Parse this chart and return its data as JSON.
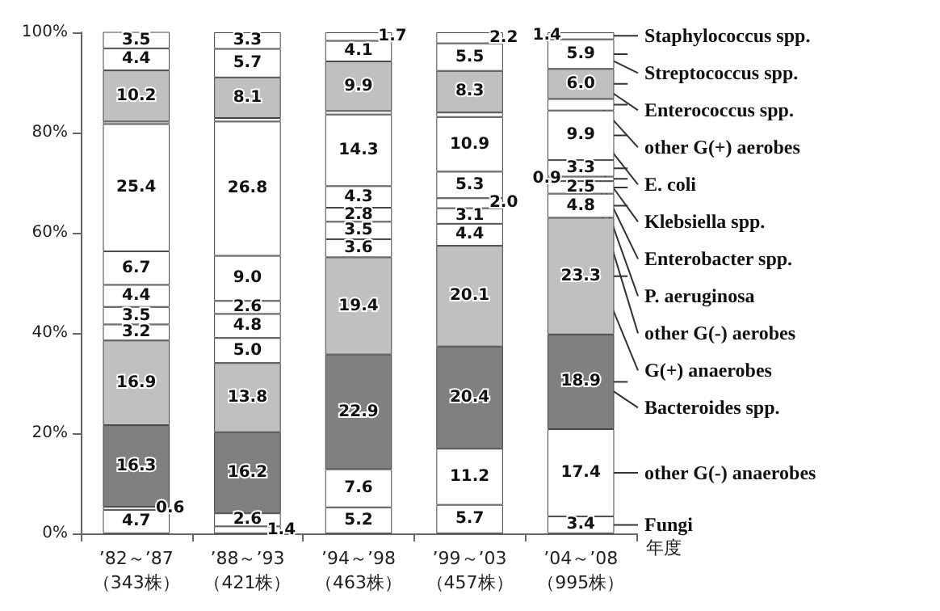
{
  "chart_data": {
    "type": "bar",
    "stacked": true,
    "xlabel": "年度",
    "categories": [
      "’82～’87\n（343株）",
      "’88～’93\n（421株）",
      "’94～’98\n（463株）",
      "’99～’03\n（457株）",
      "’04～’08\n（995株）"
    ],
    "ylim": [
      0,
      100
    ],
    "yticks": [
      {
        "value": 0,
        "label": "0%"
      },
      {
        "value": 20,
        "label": "20%"
      },
      {
        "value": 40,
        "label": "40%"
      },
      {
        "value": 60,
        "label": "60%"
      },
      {
        "value": 80,
        "label": "80%"
      },
      {
        "value": 100,
        "label": "100%"
      }
    ],
    "grid": false,
    "series": [
      {
        "name": "Fungi",
        "color": "#ffffff",
        "values": [
          4.7,
          1.4,
          5.2,
          5.7,
          3.4
        ],
        "value_labels": [
          "4.7",
          "1.4",
          "5.2",
          "5.7",
          "3.4"
        ]
      },
      {
        "name": "other G(-) anaerobes",
        "color": "#ffffff",
        "values": [
          0.6,
          2.6,
          7.6,
          11.2,
          17.4
        ],
        "value_labels": [
          "0.6",
          "2.6",
          "7.6",
          "11.2",
          "17.4"
        ]
      },
      {
        "name": "Bacteroides spp.",
        "color": "#808080",
        "values": [
          16.3,
          16.2,
          22.9,
          20.4,
          18.9
        ],
        "value_labels": [
          "16.3",
          "16.2",
          "22.9",
          "20.4",
          "18.9"
        ]
      },
      {
        "name": "G(+) anaerobes",
        "color": "#c0c0c0",
        "values": [
          16.9,
          13.8,
          19.4,
          20.1,
          23.3
        ],
        "value_labels": [
          "16.9",
          "13.8",
          "19.4",
          "20.1",
          "23.3"
        ]
      },
      {
        "name": "other G(-) aerobes",
        "color": "#ffffff",
        "values": [
          3.2,
          5.0,
          3.6,
          4.4,
          4.8
        ],
        "value_labels": [
          "3.2",
          "5.0",
          "3.6",
          "4.4",
          "4.8"
        ]
      },
      {
        "name": "P. aeruginosa",
        "color": "#ffffff",
        "values": [
          3.5,
          4.8,
          3.5,
          3.1,
          2.5
        ],
        "value_labels": [
          "3.5",
          "4.8",
          "3.5",
          "3.1",
          "2.5"
        ]
      },
      {
        "name": "Enterobacter spp.",
        "color": "#ffffff",
        "values": [
          4.4,
          2.6,
          2.8,
          2.0,
          0.9
        ],
        "value_labels": [
          "4.4",
          "2.6",
          "2.8",
          "2.0",
          "0.9"
        ]
      },
      {
        "name": "Klebsiella spp.",
        "color": "#ffffff",
        "values": [
          6.7,
          9.0,
          4.3,
          5.3,
          3.3
        ],
        "value_labels": [
          "6.7",
          "9.0",
          "4.3",
          "5.3",
          "3.3"
        ]
      },
      {
        "name": "E. coli",
        "color": "#ffffff",
        "values": [
          25.4,
          26.8,
          14.3,
          10.9,
          9.9
        ],
        "value_labels": [
          "25.4",
          "26.8",
          "14.3",
          "10.9",
          "9.9"
        ]
      },
      {
        "name": "other G(+) aerobes",
        "color": "#ffffff",
        "values": [
          0.5,
          0.7,
          0.7,
          0.9,
          2.3
        ],
        "value_labels": [
          null,
          null,
          null,
          null,
          null
        ]
      },
      {
        "name": "Enterococcus spp.",
        "color": "#c0c0c0",
        "values": [
          10.2,
          8.1,
          9.9,
          8.3,
          6.0
        ],
        "value_labels": [
          "10.2",
          "8.1",
          "9.9",
          "8.3",
          "6.0"
        ]
      },
      {
        "name": "Streptococcus spp.",
        "color": "#ffffff",
        "values": [
          4.4,
          5.7,
          4.1,
          5.5,
          5.9
        ],
        "value_labels": [
          "4.4",
          "5.7",
          "4.1",
          "5.5",
          "5.9"
        ]
      },
      {
        "name": "Staphylococcus spp.",
        "color": "#ffffff",
        "values": [
          3.5,
          3.3,
          1.7,
          2.2,
          1.4
        ],
        "value_labels": [
          "3.5",
          "3.3",
          "1.7",
          "2.2",
          "1.4"
        ]
      }
    ]
  }
}
